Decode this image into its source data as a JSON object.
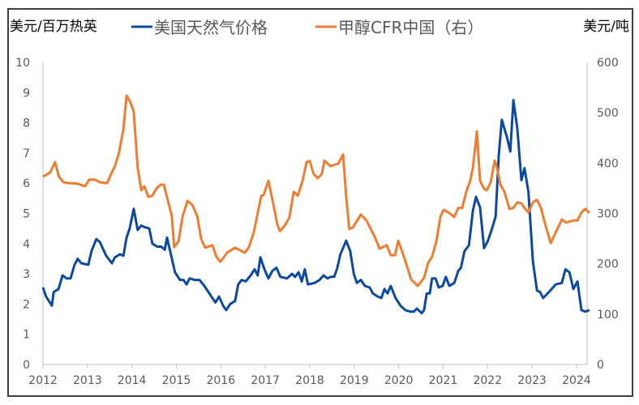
{
  "chart_data": {
    "type": "line",
    "left_axis_label": "美元/百万热英",
    "right_axis_label": "美元/吨",
    "xlim": [
      2012,
      2024.3
    ],
    "x_ticks": [
      "2012",
      "2013",
      "2014",
      "2015",
      "2016",
      "2017",
      "2018",
      "2019",
      "2020",
      "2021",
      "2022",
      "2023",
      "2024"
    ],
    "ylim_left": [
      0,
      10
    ],
    "y_ticks_left": [
      "0",
      "1",
      "2",
      "3",
      "4",
      "5",
      "6",
      "7",
      "8",
      "9",
      "10"
    ],
    "ylim_right": [
      0,
      600
    ],
    "y_ticks_right": [
      "0",
      "100",
      "200",
      "300",
      "400",
      "500",
      "600"
    ],
    "grid": false,
    "legend_position": "top",
    "series": [
      {
        "name": "美国天然气价格",
        "axis": "left",
        "color": "#0B4A9E",
        "points": [
          [
            2012.0,
            2.55
          ],
          [
            2012.07,
            2.25
          ],
          [
            2012.2,
            1.95
          ],
          [
            2012.24,
            2.4
          ],
          [
            2012.35,
            2.5
          ],
          [
            2012.44,
            2.95
          ],
          [
            2012.53,
            2.85
          ],
          [
            2012.62,
            2.85
          ],
          [
            2012.71,
            3.3
          ],
          [
            2012.78,
            3.5
          ],
          [
            2012.86,
            3.35
          ],
          [
            2013.02,
            3.3
          ],
          [
            2013.09,
            3.75
          ],
          [
            2013.2,
            4.15
          ],
          [
            2013.28,
            4.05
          ],
          [
            2013.42,
            3.6
          ],
          [
            2013.55,
            3.35
          ],
          [
            2013.62,
            3.55
          ],
          [
            2013.73,
            3.65
          ],
          [
            2013.81,
            3.6
          ],
          [
            2013.88,
            4.2
          ],
          [
            2013.95,
            4.5
          ],
          [
            2014.04,
            5.15
          ],
          [
            2014.13,
            4.45
          ],
          [
            2014.21,
            4.6
          ],
          [
            2014.28,
            4.55
          ],
          [
            2014.39,
            4.5
          ],
          [
            2014.46,
            4.0
          ],
          [
            2014.57,
            3.9
          ],
          [
            2014.66,
            3.9
          ],
          [
            2014.74,
            3.8
          ],
          [
            2014.79,
            4.2
          ],
          [
            2014.9,
            3.5
          ],
          [
            2014.97,
            3.05
          ],
          [
            2015.08,
            2.8
          ],
          [
            2015.16,
            2.8
          ],
          [
            2015.23,
            2.65
          ],
          [
            2015.3,
            2.85
          ],
          [
            2015.41,
            2.8
          ],
          [
            2015.52,
            2.8
          ],
          [
            2015.63,
            2.6
          ],
          [
            2015.72,
            2.4
          ],
          [
            2015.81,
            2.2
          ],
          [
            2015.88,
            2.05
          ],
          [
            2015.96,
            2.25
          ],
          [
            2016.05,
            1.95
          ],
          [
            2016.12,
            1.8
          ],
          [
            2016.21,
            2.0
          ],
          [
            2016.32,
            2.1
          ],
          [
            2016.39,
            2.65
          ],
          [
            2016.47,
            2.8
          ],
          [
            2016.56,
            2.75
          ],
          [
            2016.67,
            2.95
          ],
          [
            2016.76,
            3.15
          ],
          [
            2016.83,
            2.95
          ],
          [
            2016.89,
            3.55
          ],
          [
            2016.98,
            3.15
          ],
          [
            2017.07,
            2.85
          ],
          [
            2017.16,
            3.1
          ],
          [
            2017.25,
            3.2
          ],
          [
            2017.34,
            2.9
          ],
          [
            2017.49,
            2.85
          ],
          [
            2017.6,
            3.0
          ],
          [
            2017.67,
            2.9
          ],
          [
            2017.75,
            3.05
          ],
          [
            2017.82,
            2.75
          ],
          [
            2017.89,
            3.15
          ],
          [
            2017.96,
            2.65
          ],
          [
            2018.11,
            2.7
          ],
          [
            2018.22,
            2.8
          ],
          [
            2018.31,
            2.95
          ],
          [
            2018.4,
            2.85
          ],
          [
            2018.47,
            2.9
          ],
          [
            2018.55,
            2.9
          ],
          [
            2018.62,
            3.2
          ],
          [
            2018.69,
            3.65
          ],
          [
            2018.82,
            4.1
          ],
          [
            2018.91,
            3.75
          ],
          [
            2018.99,
            3.0
          ],
          [
            2019.06,
            2.7
          ],
          [
            2019.15,
            2.8
          ],
          [
            2019.24,
            2.6
          ],
          [
            2019.35,
            2.55
          ],
          [
            2019.42,
            2.35
          ],
          [
            2019.53,
            2.25
          ],
          [
            2019.61,
            2.2
          ],
          [
            2019.68,
            2.5
          ],
          [
            2019.75,
            2.35
          ],
          [
            2019.82,
            2.6
          ],
          [
            2019.93,
            2.2
          ],
          [
            2020.04,
            1.95
          ],
          [
            2020.15,
            1.8
          ],
          [
            2020.26,
            1.75
          ],
          [
            2020.34,
            1.75
          ],
          [
            2020.41,
            1.85
          ],
          [
            2020.48,
            1.75
          ],
          [
            2020.52,
            1.7
          ],
          [
            2020.57,
            1.8
          ],
          [
            2020.63,
            2.35
          ],
          [
            2020.7,
            2.35
          ],
          [
            2020.75,
            2.85
          ],
          [
            2020.83,
            2.85
          ],
          [
            2020.9,
            2.55
          ],
          [
            2020.99,
            2.6
          ],
          [
            2021.06,
            2.9
          ],
          [
            2021.14,
            2.6
          ],
          [
            2021.25,
            2.7
          ],
          [
            2021.34,
            3.1
          ],
          [
            2021.4,
            3.2
          ],
          [
            2021.48,
            3.75
          ],
          [
            2021.58,
            3.95
          ],
          [
            2021.67,
            5.1
          ],
          [
            2021.74,
            5.55
          ],
          [
            2021.83,
            5.2
          ],
          [
            2021.92,
            3.85
          ],
          [
            2022.01,
            4.1
          ],
          [
            2022.1,
            4.5
          ],
          [
            2022.18,
            4.9
          ],
          [
            2022.25,
            6.9
          ],
          [
            2022.32,
            8.1
          ],
          [
            2022.43,
            7.55
          ],
          [
            2022.51,
            7.05
          ],
          [
            2022.58,
            8.75
          ],
          [
            2022.67,
            7.8
          ],
          [
            2022.76,
            6.1
          ],
          [
            2022.83,
            6.5
          ],
          [
            2022.92,
            5.7
          ],
          [
            2023.02,
            3.4
          ],
          [
            2023.11,
            2.45
          ],
          [
            2023.18,
            2.4
          ],
          [
            2023.25,
            2.2
          ],
          [
            2023.38,
            2.4
          ],
          [
            2023.53,
            2.65
          ],
          [
            2023.67,
            2.7
          ],
          [
            2023.75,
            3.15
          ],
          [
            2023.84,
            3.05
          ],
          [
            2023.93,
            2.5
          ],
          [
            2024.02,
            2.75
          ],
          [
            2024.11,
            1.8
          ],
          [
            2024.2,
            1.75
          ],
          [
            2024.29,
            1.8
          ]
        ]
      },
      {
        "name": "甲醇CFR中国（右）",
        "axis": "right",
        "color": "#ED7D31",
        "points": [
          [
            2012.0,
            373
          ],
          [
            2012.16,
            381
          ],
          [
            2012.27,
            402
          ],
          [
            2012.36,
            373
          ],
          [
            2012.46,
            362
          ],
          [
            2012.58,
            360
          ],
          [
            2012.67,
            360
          ],
          [
            2012.77,
            359
          ],
          [
            2012.95,
            354
          ],
          [
            2013.04,
            367
          ],
          [
            2013.17,
            367
          ],
          [
            2013.28,
            362
          ],
          [
            2013.44,
            360
          ],
          [
            2013.53,
            378
          ],
          [
            2013.62,
            394
          ],
          [
            2013.71,
            421
          ],
          [
            2013.81,
            467
          ],
          [
            2013.88,
            534
          ],
          [
            2013.97,
            520
          ],
          [
            2014.04,
            502
          ],
          [
            2014.13,
            391
          ],
          [
            2014.21,
            346
          ],
          [
            2014.28,
            354
          ],
          [
            2014.37,
            333
          ],
          [
            2014.46,
            335
          ],
          [
            2014.55,
            349
          ],
          [
            2014.64,
            357
          ],
          [
            2014.72,
            357
          ],
          [
            2014.81,
            325
          ],
          [
            2014.9,
            294
          ],
          [
            2014.95,
            233
          ],
          [
            2015.05,
            245
          ],
          [
            2015.14,
            294
          ],
          [
            2015.25,
            325
          ],
          [
            2015.36,
            317
          ],
          [
            2015.47,
            294
          ],
          [
            2015.56,
            249
          ],
          [
            2015.65,
            232
          ],
          [
            2015.81,
            237
          ],
          [
            2015.9,
            214
          ],
          [
            2015.99,
            204
          ],
          [
            2016.14,
            222
          ],
          [
            2016.32,
            232
          ],
          [
            2016.54,
            222
          ],
          [
            2016.63,
            233
          ],
          [
            2016.74,
            262
          ],
          [
            2016.91,
            335
          ],
          [
            2016.96,
            336
          ],
          [
            2017.07,
            365
          ],
          [
            2017.18,
            319
          ],
          [
            2017.27,
            278
          ],
          [
            2017.33,
            265
          ],
          [
            2017.42,
            274
          ],
          [
            2017.54,
            291
          ],
          [
            2017.64,
            343
          ],
          [
            2017.73,
            335
          ],
          [
            2017.84,
            365
          ],
          [
            2017.93,
            402
          ],
          [
            2018.0,
            404
          ],
          [
            2018.09,
            378
          ],
          [
            2018.18,
            370
          ],
          [
            2018.27,
            378
          ],
          [
            2018.33,
            405
          ],
          [
            2018.46,
            394
          ],
          [
            2018.64,
            399
          ],
          [
            2018.75,
            417
          ],
          [
            2018.82,
            333
          ],
          [
            2018.89,
            269
          ],
          [
            2018.97,
            272
          ],
          [
            2019.15,
            298
          ],
          [
            2019.28,
            285
          ],
          [
            2019.46,
            254
          ],
          [
            2019.57,
            230
          ],
          [
            2019.73,
            237
          ],
          [
            2019.82,
            217
          ],
          [
            2019.92,
            217
          ],
          [
            2019.99,
            246
          ],
          [
            2020.12,
            214
          ],
          [
            2020.28,
            169
          ],
          [
            2020.43,
            156
          ],
          [
            2020.57,
            172
          ],
          [
            2020.66,
            201
          ],
          [
            2020.75,
            214
          ],
          [
            2020.85,
            245
          ],
          [
            2020.94,
            294
          ],
          [
            2021.01,
            307
          ],
          [
            2021.12,
            302
          ],
          [
            2021.25,
            293
          ],
          [
            2021.34,
            311
          ],
          [
            2021.43,
            311
          ],
          [
            2021.52,
            343
          ],
          [
            2021.61,
            365
          ],
          [
            2021.67,
            391
          ],
          [
            2021.76,
            463
          ],
          [
            2021.83,
            365
          ],
          [
            2021.92,
            349
          ],
          [
            2021.98,
            346
          ],
          [
            2022.07,
            362
          ],
          [
            2022.16,
            405
          ],
          [
            2022.21,
            391
          ],
          [
            2022.29,
            357
          ],
          [
            2022.38,
            343
          ],
          [
            2022.49,
            309
          ],
          [
            2022.58,
            311
          ],
          [
            2022.67,
            322
          ],
          [
            2022.76,
            320
          ],
          [
            2022.83,
            311
          ],
          [
            2022.92,
            302
          ],
          [
            2023.02,
            322
          ],
          [
            2023.11,
            327
          ],
          [
            2023.2,
            311
          ],
          [
            2023.31,
            274
          ],
          [
            2023.42,
            241
          ],
          [
            2023.53,
            262
          ],
          [
            2023.67,
            288
          ],
          [
            2023.76,
            282
          ],
          [
            2023.93,
            286
          ],
          [
            2024.02,
            286
          ],
          [
            2024.11,
            302
          ],
          [
            2024.2,
            309
          ],
          [
            2024.29,
            301
          ]
        ]
      }
    ]
  }
}
